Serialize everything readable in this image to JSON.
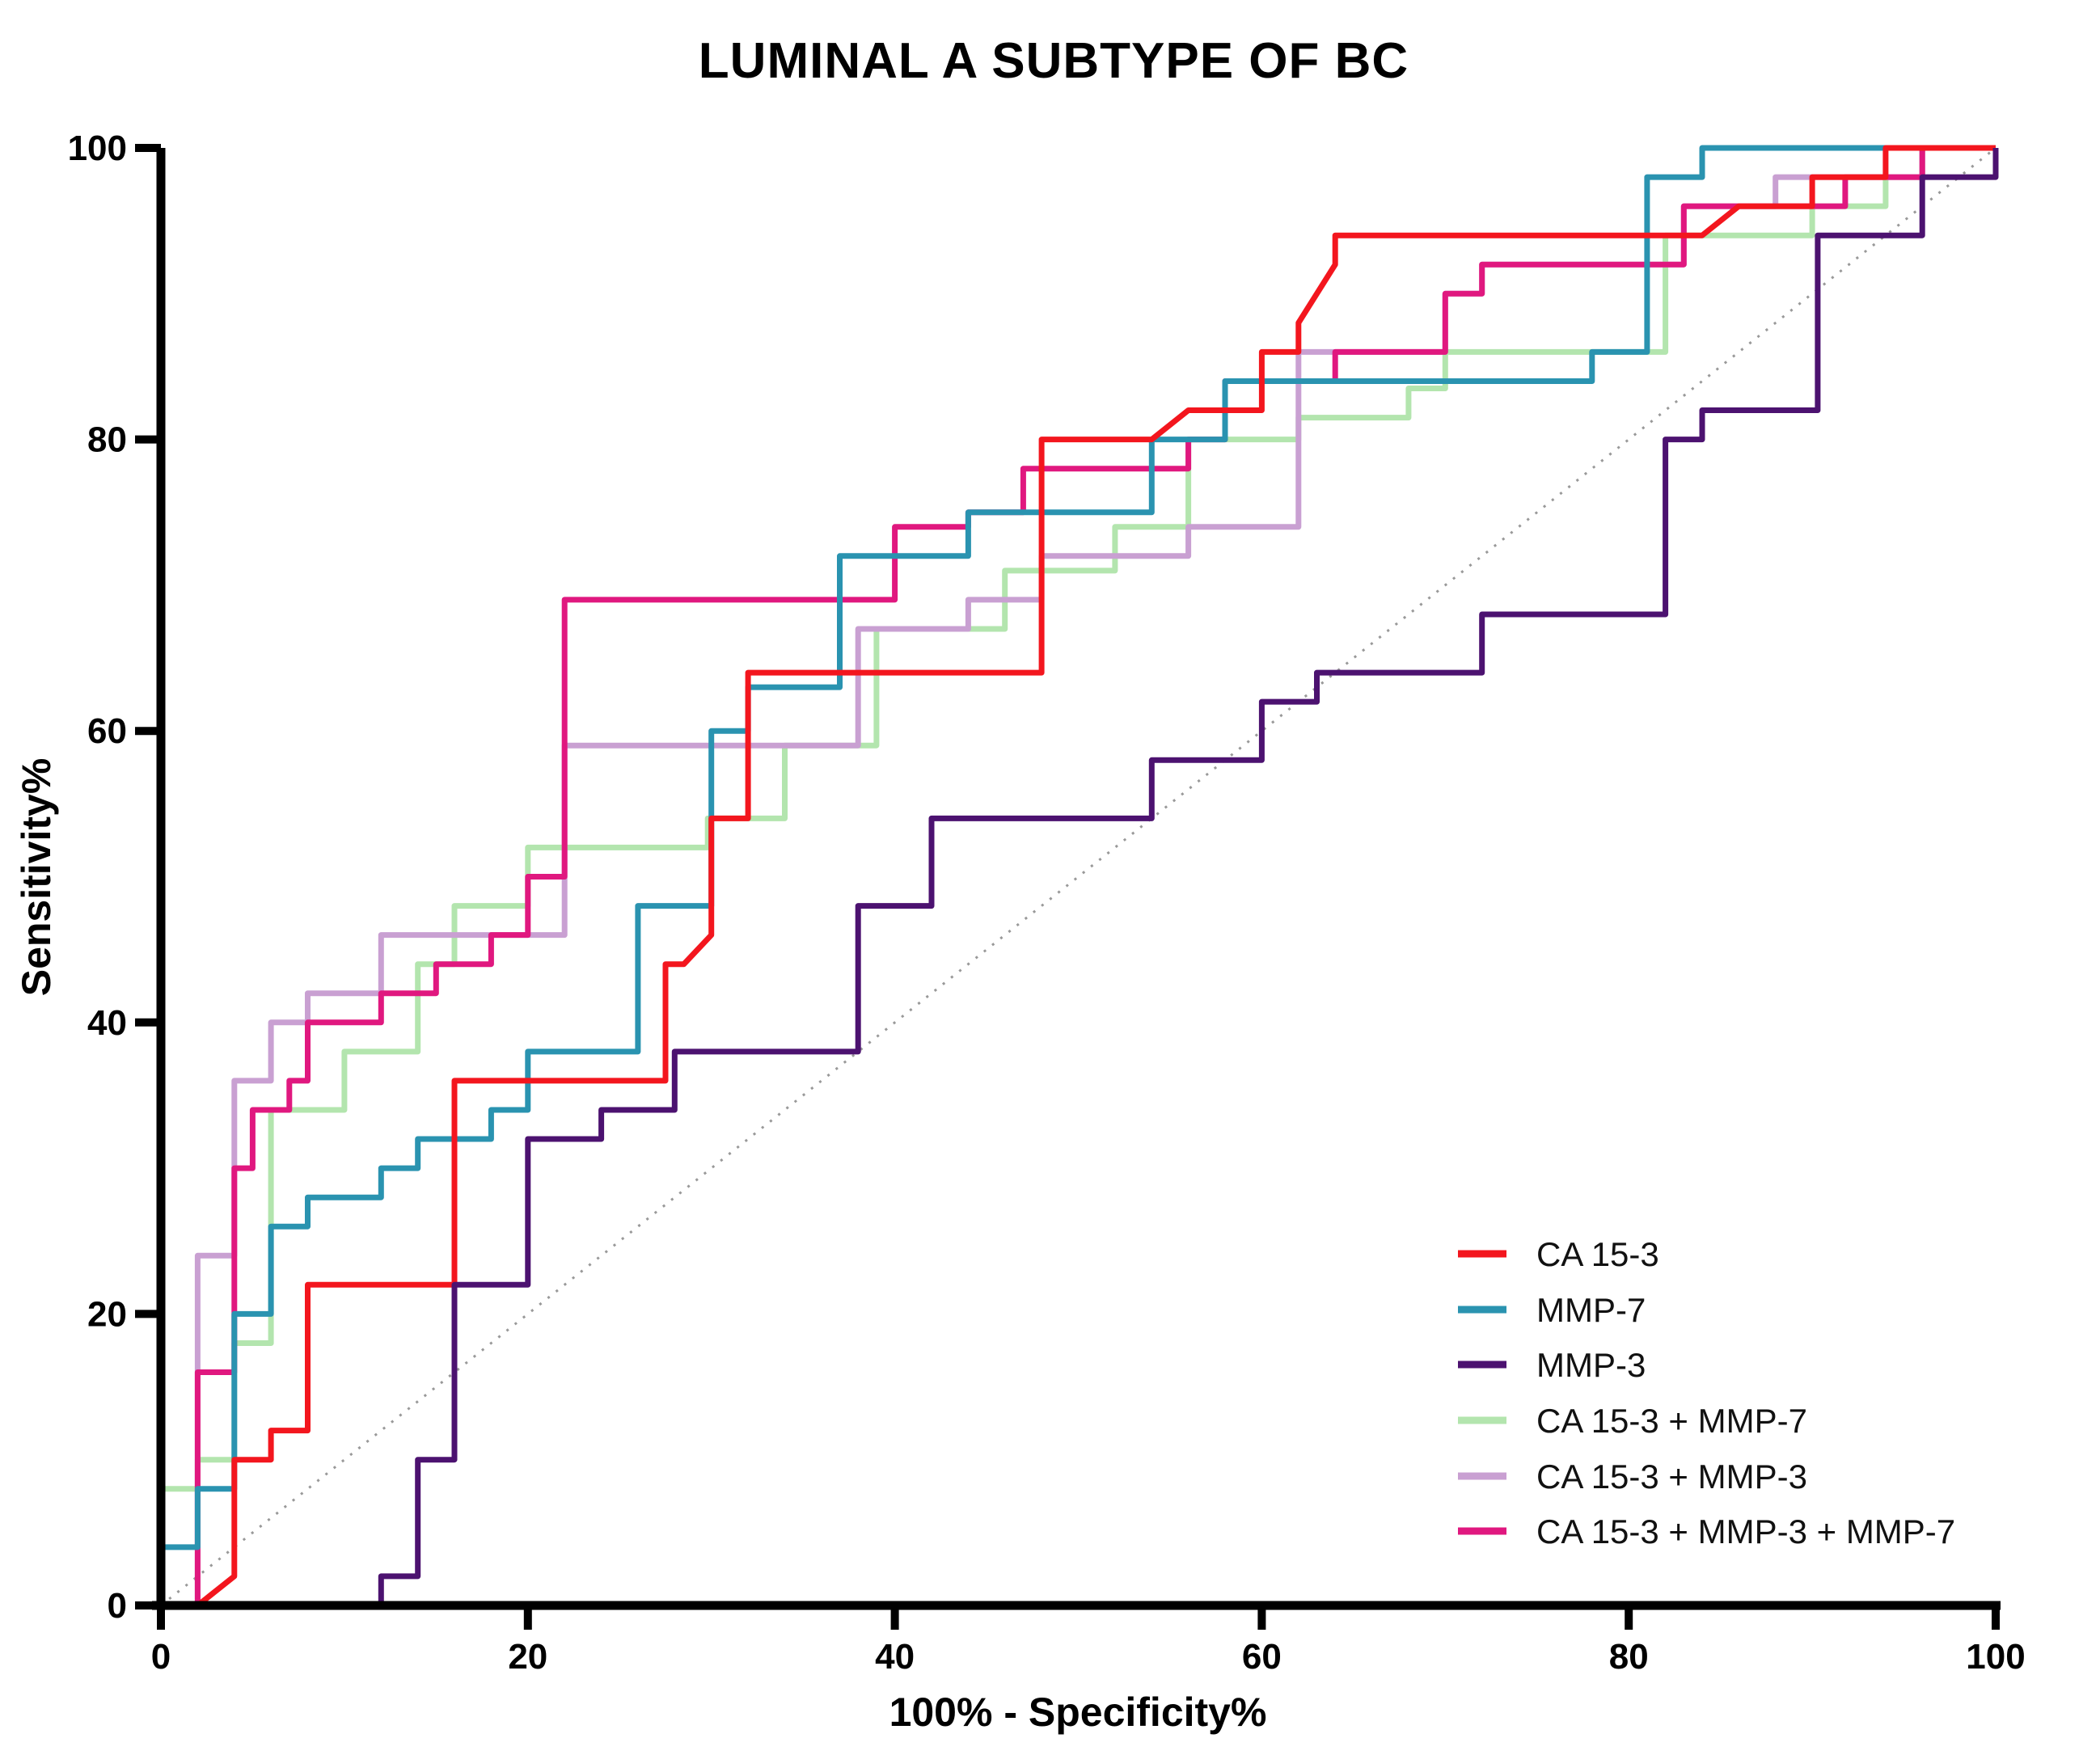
{
  "title": "LUMINAL A SUBTYPE OF BC",
  "chart_data": {
    "type": "line",
    "subtype": "roc-curves",
    "title": "LUMINAL A SUBTYPE OF BC",
    "xlabel": "100% - Specificity%",
    "ylabel": "Sensitivity%",
    "xlim": [
      0,
      100
    ],
    "ylim": [
      0,
      100
    ],
    "xticks": [
      0,
      20,
      40,
      60,
      80,
      100
    ],
    "yticks": [
      0,
      20,
      40,
      60,
      80,
      100
    ],
    "grid": false,
    "legend_position": "lower right",
    "axis_color": "#000000",
    "reference_line": {
      "name": "identity-diagonal",
      "style": "dotted",
      "color": "#999999",
      "points": [
        [
          0,
          0
        ],
        [
          100,
          100
        ]
      ]
    },
    "series": [
      {
        "name": "CA 15-3",
        "color": "#F3161E",
        "z": 5,
        "points": [
          [
            0,
            0
          ],
          [
            2,
            0
          ],
          [
            4,
            2
          ],
          [
            4,
            10
          ],
          [
            6,
            10
          ],
          [
            6,
            12
          ],
          [
            8,
            12
          ],
          [
            8,
            22
          ],
          [
            16,
            22
          ],
          [
            16,
            36
          ],
          [
            27.5,
            36
          ],
          [
            27.5,
            44
          ],
          [
            28.5,
            44
          ],
          [
            30,
            46
          ],
          [
            30,
            54
          ],
          [
            32,
            54
          ],
          [
            32,
            64
          ],
          [
            48,
            64
          ],
          [
            48,
            80
          ],
          [
            54,
            80
          ],
          [
            56,
            82
          ],
          [
            60,
            82
          ],
          [
            60,
            86
          ],
          [
            62,
            86
          ],
          [
            62,
            88
          ],
          [
            64,
            92
          ],
          [
            64,
            94
          ],
          [
            84,
            94
          ],
          [
            86,
            96
          ],
          [
            90,
            96
          ],
          [
            90,
            98
          ],
          [
            94,
            98
          ],
          [
            94,
            100
          ],
          [
            100,
            100
          ]
        ]
      },
      {
        "name": "MMP-7",
        "color": "#2A93B0",
        "z": 4,
        "points": [
          [
            0,
            0
          ],
          [
            0,
            4
          ],
          [
            2,
            4
          ],
          [
            2,
            8
          ],
          [
            4,
            8
          ],
          [
            4,
            20
          ],
          [
            6,
            20
          ],
          [
            6,
            26
          ],
          [
            8,
            26
          ],
          [
            8,
            28
          ],
          [
            12,
            28
          ],
          [
            12,
            30
          ],
          [
            14,
            30
          ],
          [
            14,
            32
          ],
          [
            18,
            32
          ],
          [
            18,
            34
          ],
          [
            20,
            34
          ],
          [
            20,
            38
          ],
          [
            26,
            38
          ],
          [
            26,
            48
          ],
          [
            30,
            48
          ],
          [
            30,
            60
          ],
          [
            32,
            60
          ],
          [
            32,
            63
          ],
          [
            37,
            63
          ],
          [
            37,
            72
          ],
          [
            44,
            72
          ],
          [
            44,
            75
          ],
          [
            54,
            75
          ],
          [
            54,
            80
          ],
          [
            58,
            80
          ],
          [
            58,
            84
          ],
          [
            78,
            84
          ],
          [
            78,
            86
          ],
          [
            81,
            86
          ],
          [
            81,
            98
          ],
          [
            84,
            98
          ],
          [
            84,
            100
          ],
          [
            100,
            100
          ]
        ]
      },
      {
        "name": "MMP-3",
        "color": "#4C1270",
        "z": 6,
        "points": [
          [
            0,
            0
          ],
          [
            12,
            0
          ],
          [
            12,
            2
          ],
          [
            14,
            2
          ],
          [
            14,
            10
          ],
          [
            16,
            10
          ],
          [
            16,
            22
          ],
          [
            20,
            22
          ],
          [
            20,
            32
          ],
          [
            24,
            32
          ],
          [
            24,
            34
          ],
          [
            28,
            34
          ],
          [
            28,
            38
          ],
          [
            38,
            38
          ],
          [
            38,
            48
          ],
          [
            42,
            48
          ],
          [
            42,
            54
          ],
          [
            54,
            54
          ],
          [
            54,
            58
          ],
          [
            60,
            58
          ],
          [
            60,
            62
          ],
          [
            63,
            62
          ],
          [
            63,
            64
          ],
          [
            72,
            64
          ],
          [
            72,
            68
          ],
          [
            82,
            68
          ],
          [
            82,
            80
          ],
          [
            84,
            80
          ],
          [
            84,
            82
          ],
          [
            90.3,
            82
          ],
          [
            90.3,
            94
          ],
          [
            96,
            94
          ],
          [
            96,
            98
          ],
          [
            100,
            98
          ],
          [
            100,
            100
          ]
        ]
      },
      {
        "name": "CA 15-3 + MMP-7",
        "color": "#B3E5AE",
        "z": 1,
        "points": [
          [
            0,
            0
          ],
          [
            0,
            8
          ],
          [
            2,
            8
          ],
          [
            2,
            10
          ],
          [
            4,
            10
          ],
          [
            4,
            18
          ],
          [
            6,
            18
          ],
          [
            6,
            34
          ],
          [
            10,
            34
          ],
          [
            10,
            38
          ],
          [
            14,
            38
          ],
          [
            14,
            44
          ],
          [
            16,
            44
          ],
          [
            16,
            48
          ],
          [
            20,
            48
          ],
          [
            20,
            52
          ],
          [
            29.8,
            52
          ],
          [
            29.8,
            54
          ],
          [
            34,
            54
          ],
          [
            34,
            59
          ],
          [
            39,
            59
          ],
          [
            39,
            67
          ],
          [
            46,
            67
          ],
          [
            46,
            71
          ],
          [
            52,
            71
          ],
          [
            52,
            74
          ],
          [
            56,
            74
          ],
          [
            56,
            80
          ],
          [
            62,
            80
          ],
          [
            62,
            81.5
          ],
          [
            68,
            81.5
          ],
          [
            68,
            83.5
          ],
          [
            70,
            83.5
          ],
          [
            70,
            86
          ],
          [
            82,
            86
          ],
          [
            82,
            94
          ],
          [
            90,
            94
          ],
          [
            90,
            96
          ],
          [
            94,
            96
          ],
          [
            94,
            98
          ],
          [
            96,
            98
          ],
          [
            96,
            100
          ],
          [
            100,
            100
          ]
        ]
      },
      {
        "name": "CA 15-3 + MMP-3",
        "color": "#C9A0D2",
        "z": 2,
        "points": [
          [
            0,
            0
          ],
          [
            2,
            0
          ],
          [
            2,
            24
          ],
          [
            4,
            24
          ],
          [
            4,
            36
          ],
          [
            6,
            36
          ],
          [
            6,
            40
          ],
          [
            8,
            40
          ],
          [
            8,
            42
          ],
          [
            12,
            42
          ],
          [
            12,
            46
          ],
          [
            22,
            46
          ],
          [
            22,
            59
          ],
          [
            38,
            59
          ],
          [
            38,
            67
          ],
          [
            44,
            67
          ],
          [
            44,
            69
          ],
          [
            48,
            69
          ],
          [
            48,
            72
          ],
          [
            56,
            72
          ],
          [
            56,
            74
          ],
          [
            62,
            74
          ],
          [
            62,
            86
          ],
          [
            70,
            86
          ],
          [
            70,
            90
          ],
          [
            72,
            90
          ],
          [
            72,
            92
          ],
          [
            83,
            92
          ],
          [
            83,
            96
          ],
          [
            88,
            96
          ],
          [
            88,
            98
          ],
          [
            96,
            98
          ],
          [
            96,
            100
          ],
          [
            100,
            100
          ]
        ]
      },
      {
        "name": "CA 15-3 + MMP-3 + MMP-7",
        "color": "#E0187F",
        "z": 3,
        "points": [
          [
            0,
            0
          ],
          [
            2,
            0
          ],
          [
            2,
            16
          ],
          [
            4,
            16
          ],
          [
            4,
            30
          ],
          [
            5,
            30
          ],
          [
            5,
            34
          ],
          [
            7,
            34
          ],
          [
            7,
            36
          ],
          [
            8,
            36
          ],
          [
            8,
            40
          ],
          [
            12,
            40
          ],
          [
            12,
            42
          ],
          [
            15,
            42
          ],
          [
            15,
            44
          ],
          [
            18,
            44
          ],
          [
            18,
            46
          ],
          [
            20,
            46
          ],
          [
            20,
            50
          ],
          [
            22,
            50
          ],
          [
            22,
            69
          ],
          [
            40,
            69
          ],
          [
            40,
            74
          ],
          [
            44,
            74
          ],
          [
            44,
            75
          ],
          [
            47,
            75
          ],
          [
            47,
            78
          ],
          [
            56,
            78
          ],
          [
            56,
            80
          ],
          [
            58,
            80
          ],
          [
            58,
            84
          ],
          [
            64,
            84
          ],
          [
            64,
            86
          ],
          [
            70,
            86
          ],
          [
            70,
            90
          ],
          [
            72,
            90
          ],
          [
            72,
            92
          ],
          [
            83,
            92
          ],
          [
            83,
            96
          ],
          [
            91.8,
            96
          ],
          [
            91.8,
            98
          ],
          [
            96,
            98
          ],
          [
            96,
            100
          ],
          [
            100,
            100
          ]
        ]
      }
    ]
  }
}
